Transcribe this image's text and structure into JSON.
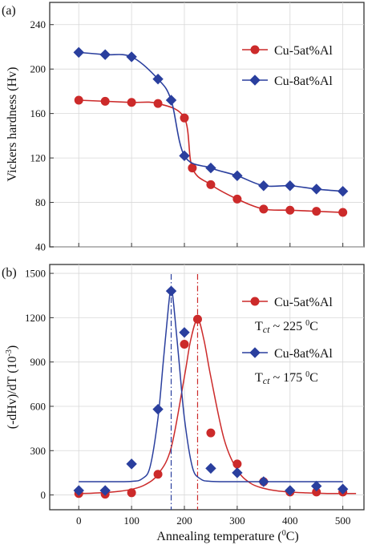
{
  "chart_data": [
    {
      "type": "line",
      "panel_label": "(a)",
      "ylabel": "Vickers hardness (Hv)",
      "xlim": [
        -55,
        540
      ],
      "ylim": [
        40,
        260
      ],
      "yticks": [
        40,
        80,
        120,
        160,
        200,
        240
      ],
      "grid": true,
      "legend_position": "top-right",
      "series": [
        {
          "name": "Cu-5at%Al",
          "color": "#cc2a2a",
          "marker": "circle",
          "x": [
            0,
            50,
            100,
            150,
            200,
            215,
            250,
            300,
            350,
            400,
            450,
            500
          ],
          "y": [
            172,
            171,
            170,
            169,
            156,
            111,
            96,
            83,
            74,
            73,
            72,
            71
          ]
        },
        {
          "name": "Cu-8at%Al",
          "color": "#2a3f9e",
          "marker": "diamond",
          "x": [
            0,
            50,
            100,
            150,
            175,
            200,
            250,
            300,
            350,
            400,
            450,
            500
          ],
          "y": [
            215,
            213,
            211,
            191,
            172,
            122,
            111,
            104,
            95,
            95,
            92,
            90
          ]
        }
      ]
    },
    {
      "type": "scatter",
      "panel_label": "(b)",
      "xlabel": "Annealing temperature (",
      "xlabel_unit": "0",
      "xlabel_unit_suffix": "C)",
      "ylabel": "(-dHv)/dT (10",
      "ylabel_exp": "-3",
      "ylabel_suffix": ")",
      "xlim": [
        -55,
        540
      ],
      "ylim": [
        -100,
        1560
      ],
      "xticks": [
        0,
        100,
        200,
        300,
        400,
        500
      ],
      "yticks": [
        0,
        300,
        600,
        900,
        1200,
        1500
      ],
      "grid": true,
      "legend_position": "right",
      "series": [
        {
          "name": "Cu-5at%Al",
          "color": "#cc2a2a",
          "marker": "circle",
          "x": [
            0,
            50,
            100,
            150,
            200,
            225,
            250,
            300,
            350,
            400,
            450,
            500
          ],
          "y": [
            10,
            5,
            15,
            140,
            1020,
            1190,
            420,
            210,
            90,
            20,
            20,
            20
          ],
          "annotation_main": "T",
          "annotation_sub": "ct",
          "annotation_rest": " ~ 225 ",
          "annotation_sup": "0",
          "annotation_unit": "C",
          "peak_x": 225,
          "fit": {
            "x": [
              0,
              25,
              50,
              75,
              100,
              125,
              150,
              175,
              200,
              212,
              225,
              237,
              250,
              275,
              300,
              325,
              350,
              375,
              400,
              425,
              450,
              475,
              500,
              525
            ],
            "y": [
              10,
              12,
              16,
              24,
              38,
              68,
              140,
              320,
              800,
              1050,
              1190,
              1050,
              800,
              380,
              170,
              80,
              45,
              28,
              20,
              15,
              12,
              10,
              10,
              10
            ]
          }
        },
        {
          "name": "Cu-8at%Al",
          "color": "#2a3f9e",
          "marker": "diamond",
          "x": [
            0,
            50,
            100,
            150,
            175,
            200,
            250,
            300,
            350,
            400,
            450,
            500
          ],
          "y": [
            30,
            30,
            210,
            580,
            1380,
            1100,
            180,
            150,
            90,
            30,
            60,
            40
          ],
          "annotation_main": "T",
          "annotation_sub": "ct",
          "annotation_rest": " ~ 175 ",
          "annotation_sup": "0",
          "annotation_unit": "C",
          "peak_x": 175,
          "fit": {
            "x": [
              0,
              50,
              100,
              120,
              135,
              150,
              160,
              170,
              175,
              180,
              190,
              200,
              215,
              230,
              250,
              300,
              400,
              500
            ],
            "y": [
              90,
              90,
              92,
              110,
              190,
              520,
              900,
              1280,
              1400,
              1280,
              900,
              520,
              190,
              110,
              92,
              90,
              90,
              90
            ]
          }
        }
      ]
    }
  ]
}
